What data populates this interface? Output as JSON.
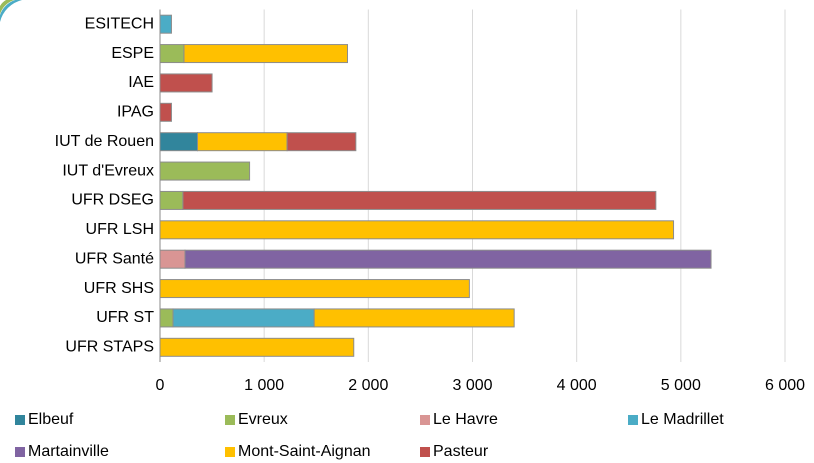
{
  "chart_data": {
    "type": "stacked_barh",
    "categories": [
      "ESITECH",
      "ESPE",
      "IAE",
      "IPAG",
      "IUT de Rouen",
      "IUT d'Evreux",
      "UFR DSEG",
      "UFR LSH",
      "UFR Santé",
      "UFR SHS",
      "UFR ST",
      "UFR STAPS"
    ],
    "series": [
      {
        "name": "Elbeuf",
        "color": "#31859c",
        "values": [
          null,
          null,
          null,
          null,
          360,
          null,
          null,
          null,
          null,
          null,
          null,
          null
        ]
      },
      {
        "name": "Evreux",
        "color": "#9bbb59",
        "values": [
          null,
          230,
          null,
          null,
          null,
          860,
          220,
          null,
          null,
          null,
          125,
          null
        ]
      },
      {
        "name": "Le Havre",
        "color": "#d99594",
        "values": [
          null,
          null,
          null,
          null,
          null,
          null,
          null,
          null,
          240,
          null,
          null,
          null
        ]
      },
      {
        "name": "Le Madrillet",
        "color": "#4bacc6",
        "values": [
          110,
          null,
          null,
          null,
          null,
          null,
          null,
          null,
          null,
          null,
          1355,
          null
        ]
      },
      {
        "name": "Martainville",
        "color": "#8064a2",
        "values": [
          null,
          null,
          null,
          null,
          null,
          null,
          null,
          null,
          5050,
          null,
          null,
          null
        ]
      },
      {
        "name": "Mont-Saint-Aignan",
        "color": "#ffc000",
        "values": [
          null,
          1570,
          null,
          null,
          860,
          null,
          null,
          4930,
          null,
          2970,
          1920,
          1860
        ]
      },
      {
        "name": "Pasteur",
        "color": "#c0504d",
        "values": [
          null,
          null,
          500,
          110,
          660,
          null,
          4540,
          null,
          null,
          null,
          null,
          null
        ]
      }
    ],
    "xlim": [
      0,
      6000
    ],
    "xticks": [
      0,
      {
        "value": 1000,
        "label": "1 000"
      },
      {
        "value": 2000,
        "label": "2 000"
      },
      {
        "value": 3000,
        "label": "3 000"
      },
      {
        "value": 4000,
        "label": "4 000"
      },
      {
        "value": 5000,
        "label": "5 000"
      },
      {
        "value": 6000,
        "label": "6 000"
      }
    ],
    "grid": true,
    "legend": "bottom"
  }
}
